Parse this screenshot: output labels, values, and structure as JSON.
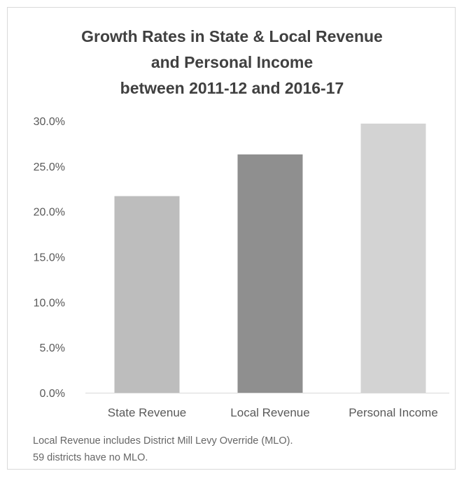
{
  "chart_data": {
    "type": "bar",
    "title_lines": [
      "Growth Rates in State & Local Revenue",
      "and Personal Income",
      "between 2011-12 and 2016-17"
    ],
    "categories": [
      "State Revenue",
      "Local Revenue",
      "Personal Income"
    ],
    "values": [
      21.7,
      26.3,
      29.7
    ],
    "ylim": [
      0,
      30
    ],
    "yticks": [
      "0.0%",
      "5.0%",
      "10.0%",
      "15.0%",
      "20.0%",
      "25.0%",
      "30.0%"
    ],
    "ytick_values": [
      0,
      5,
      10,
      15,
      20,
      25,
      30
    ],
    "colors": [
      "#bdbdbd",
      "#8f8f8f",
      "#d3d3d3"
    ],
    "grid": false,
    "legend": "none"
  },
  "notes": [
    "Local Revenue includes District Mill Levy Override (MLO).",
    "59 districts have no MLO."
  ]
}
